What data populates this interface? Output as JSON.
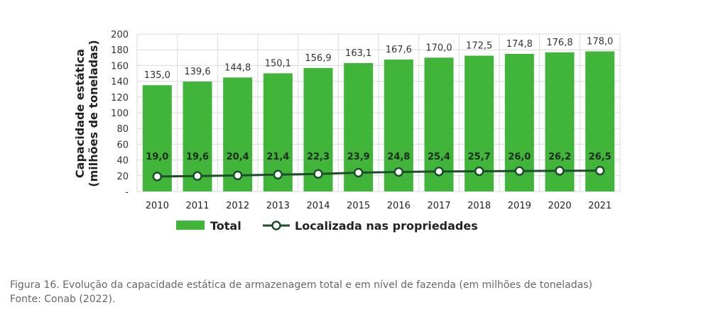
{
  "chart_data": {
    "type": "bar",
    "categories": [
      "2010",
      "2011",
      "2012",
      "2013",
      "2014",
      "2015",
      "2016",
      "2017",
      "2018",
      "2019",
      "2020",
      "2021"
    ],
    "series": [
      {
        "name": "Total",
        "kind": "bar",
        "color": "#41B53A",
        "values": [
          135.0,
          139.6,
          144.8,
          150.1,
          156.9,
          163.1,
          167.6,
          170.0,
          172.5,
          174.8,
          176.8,
          178.0
        ],
        "labels": [
          "135,0",
          "139,6",
          "144,8",
          "150,1",
          "156,9",
          "163,1",
          "167,6",
          "170,0",
          "172,5",
          "174,8",
          "176,8",
          "178,0"
        ]
      },
      {
        "name": "Localizada nas propriedades",
        "kind": "line",
        "color": "#1D4D2B",
        "values": [
          19.0,
          19.6,
          20.4,
          21.4,
          22.3,
          23.9,
          24.8,
          25.4,
          25.7,
          26.0,
          26.2,
          26.5
        ],
        "labels": [
          "19,0",
          "19,6",
          "20,4",
          "21,4",
          "22,3",
          "23,9",
          "24,8",
          "25,4",
          "25,7",
          "26,0",
          "26,2",
          "26,5"
        ]
      }
    ],
    "ylabel_line1": "Capacidade estática",
    "ylabel_line2": "(milhões de toneladas)",
    "ylim": [
      0,
      200
    ],
    "yticks": [
      0,
      20,
      40,
      60,
      80,
      100,
      120,
      140,
      160,
      180,
      200
    ],
    "ytick_labels": [
      "-",
      "20",
      "40",
      "60",
      "80",
      "100",
      "120",
      "140",
      "160",
      "180",
      "200"
    ],
    "grid": true,
    "legend_position": "bottom"
  },
  "caption": {
    "line1": "Figura 16. Evolução da capacidade estática de armazenagem total e em nível de fazenda (em milhões de toneladas)",
    "line2": "Fonte: Conab (2022)."
  }
}
